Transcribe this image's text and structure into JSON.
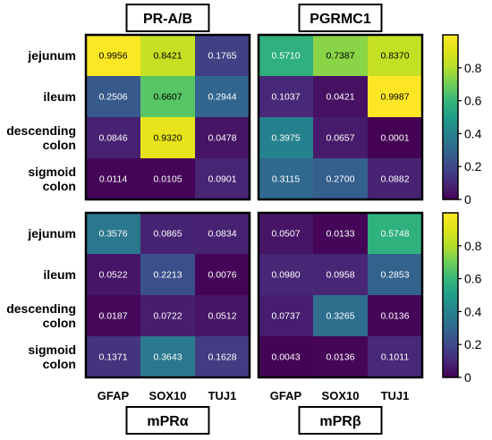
{
  "chart_data": {
    "type": "heatmap",
    "rows": [
      "jejunum",
      "ileum",
      "descending colon",
      "sigmoid colon"
    ],
    "columns": [
      "GFAP",
      "SOX10",
      "TUJ1"
    ],
    "colormap": "viridis",
    "color_range": [
      0,
      1
    ],
    "colorbar_ticks": [
      "0",
      "0.2",
      "0.4",
      "0.6",
      "0.8"
    ],
    "panels": [
      {
        "title": "PR-A/B",
        "values": [
          [
            0.9956,
            0.8421,
            0.1765
          ],
          [
            0.2506,
            0.6607,
            0.2944
          ],
          [
            0.0846,
            0.932,
            0.0478
          ],
          [
            0.0114,
            0.0105,
            0.0901
          ]
        ]
      },
      {
        "title": "PGRMC1",
        "values": [
          [
            0.571,
            0.7387,
            0.837
          ],
          [
            0.1037,
            0.0421,
            0.9987
          ],
          [
            0.3975,
            0.0657,
            0.0001
          ],
          [
            0.3115,
            0.27,
            0.0882
          ]
        ]
      },
      {
        "title": "mPRα",
        "values": [
          [
            0.3576,
            0.0865,
            0.0834
          ],
          [
            0.0522,
            0.2213,
            0.0076
          ],
          [
            0.0187,
            0.0722,
            0.0512
          ],
          [
            0.1371,
            0.3643,
            0.1628
          ]
        ]
      },
      {
        "title": "mPRβ",
        "values": [
          [
            0.0507,
            0.0133,
            0.5748
          ],
          [
            0.098,
            0.0958,
            0.2853
          ],
          [
            0.0737,
            0.3265,
            0.0136
          ],
          [
            0.0043,
            0.0136,
            0.1011
          ]
        ]
      }
    ]
  }
}
